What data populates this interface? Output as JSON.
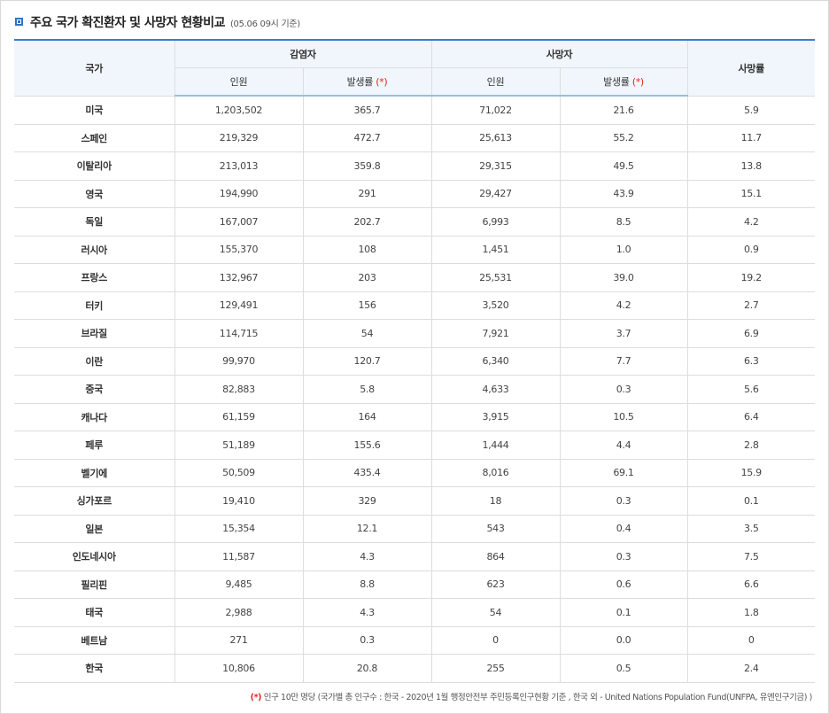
{
  "title": "주요 국가 확진환자 및 사망자 현황비교",
  "subtitle": "(05.06 09시 기준)",
  "header": {
    "country": "국가",
    "infected": "감염자",
    "deaths": "사망자",
    "fatality": "사망률",
    "persons": "인원",
    "rate": "발생률",
    "rate_mark": "(*)"
  },
  "rows": [
    [
      "미국",
      "1,203,502",
      "365.7",
      "71,022",
      "21.6",
      "5.9"
    ],
    [
      "스페인",
      "219,329",
      "472.7",
      "25,613",
      "55.2",
      "11.7"
    ],
    [
      "이탈리아",
      "213,013",
      "359.8",
      "29,315",
      "49.5",
      "13.8"
    ],
    [
      "영국",
      "194,990",
      "291",
      "29,427",
      "43.9",
      "15.1"
    ],
    [
      "독일",
      "167,007",
      "202.7",
      "6,993",
      "8.5",
      "4.2"
    ],
    [
      "러시아",
      "155,370",
      "108",
      "1,451",
      "1.0",
      "0.9"
    ],
    [
      "프랑스",
      "132,967",
      "203",
      "25,531",
      "39.0",
      "19.2"
    ],
    [
      "터키",
      "129,491",
      "156",
      "3,520",
      "4.2",
      "2.7"
    ],
    [
      "브라질",
      "114,715",
      "54",
      "7,921",
      "3.7",
      "6.9"
    ],
    [
      "이란",
      "99,970",
      "120.7",
      "6,340",
      "7.7",
      "6.3"
    ],
    [
      "중국",
      "82,883",
      "5.8",
      "4,633",
      "0.3",
      "5.6"
    ],
    [
      "캐나다",
      "61,159",
      "164",
      "3,915",
      "10.5",
      "6.4"
    ],
    [
      "페루",
      "51,189",
      "155.6",
      "1,444",
      "4.4",
      "2.8"
    ],
    [
      "벨기에",
      "50,509",
      "435.4",
      "8,016",
      "69.1",
      "15.9"
    ],
    [
      "싱가포르",
      "19,410",
      "329",
      "18",
      "0.3",
      "0.1"
    ],
    [
      "일본",
      "15,354",
      "12.1",
      "543",
      "0.4",
      "3.5"
    ],
    [
      "인도네시아",
      "11,587",
      "4.3",
      "864",
      "0.3",
      "7.5"
    ],
    [
      "필리핀",
      "9,485",
      "8.8",
      "623",
      "0.6",
      "6.6"
    ],
    [
      "태국",
      "2,988",
      "4.3",
      "54",
      "0.1",
      "1.8"
    ],
    [
      "베트남",
      "271",
      "0.3",
      "0",
      "0.0",
      "0"
    ],
    [
      "한국",
      "10,806",
      "20.8",
      "255",
      "0.5",
      "2.4"
    ]
  ],
  "footnote": {
    "mark": "(*)",
    "text": " 인구 10만 명당 (국가별 총 인구수 : 한국 - 2020년 1월 행정안전부 주민등록인구현황 기준 , 한국 외 - United Nations Population Fund(UNFPA, 유엔인구기금) )"
  },
  "colors": {
    "accent": "#2f73c5",
    "header_bg": "#f1f6fc",
    "red_mark": "#e02424"
  }
}
